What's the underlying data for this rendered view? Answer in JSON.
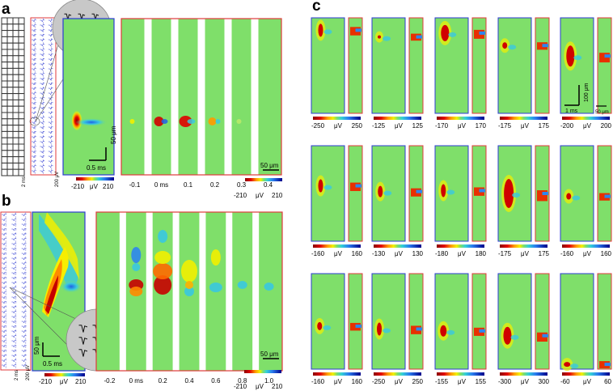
{
  "panels": {
    "a": {
      "letter": "a",
      "colorbar_main": {
        "min": "-210",
        "unit": "μV",
        "max": "210"
      },
      "colorbar_frames": {
        "min": "-210",
        "unit": "μV",
        "max": "210"
      },
      "scale_time": "0.5 ms",
      "scale_space": "50 μm",
      "scale_frames": "50 μm",
      "probe_time": "2 ms",
      "probe_volt": "200 μV",
      "frame_labels": [
        "-0.1",
        "0 ms",
        "0.1",
        "0.2",
        "0.3",
        "0.4"
      ]
    },
    "b": {
      "letter": "b",
      "colorbar_main": {
        "min": "-210",
        "unit": "μV",
        "max": "210"
      },
      "colorbar_frames": {
        "min": "-210",
        "unit": "μV",
        "max": "210"
      },
      "scale_time": "0.5 ms",
      "scale_space": "50 μm",
      "scale_frames": "50 μm",
      "probe_time": "2 ms",
      "probe_volt": "200 μV",
      "frame_labels": [
        "-0.2",
        "0 ms",
        "0.2",
        "0.4",
        "0.6",
        "0.8",
        "1.0"
      ]
    },
    "c": {
      "letter": "c",
      "scale_time": "1 ms",
      "scale_space": "100 μm",
      "scale_small": "50 μm",
      "unit": "μV",
      "colorbars": [
        [
          "-250",
          "250"
        ],
        [
          "-125",
          "125"
        ],
        [
          "-170",
          "170"
        ],
        [
          "-175",
          "175"
        ],
        [
          "-200",
          "200"
        ],
        [
          "-160",
          "160"
        ],
        [
          "-130",
          "130"
        ],
        [
          "-180",
          "180"
        ],
        [
          "-175",
          "175"
        ],
        [
          "-160",
          "160"
        ],
        [
          "-160",
          "160"
        ],
        [
          "-250",
          "250"
        ],
        [
          "-155",
          "155"
        ],
        [
          "-300",
          "300"
        ],
        [
          "-60",
          "60"
        ]
      ]
    }
  },
  "colors": {
    "field": "#7fdf6a",
    "frame_red": "#e0393b",
    "frame_blue": "#2c3bd4",
    "gray_circle": "#c8c8c8"
  }
}
